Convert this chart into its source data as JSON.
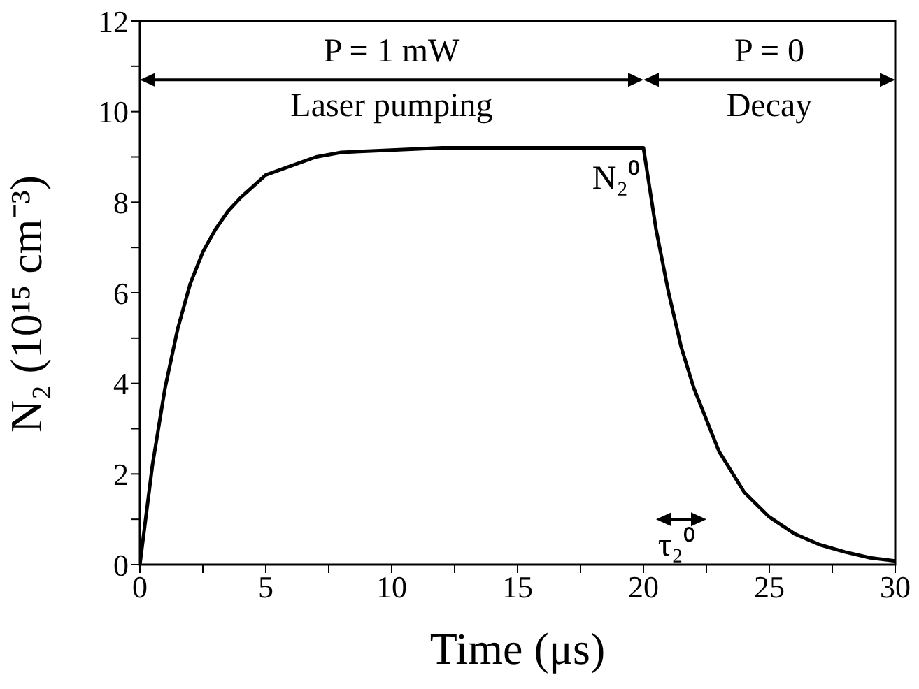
{
  "chart_data": {
    "type": "line",
    "xlabel": "Time (μs)",
    "ylabel": "N₂ (10¹⁵ cm⁻³)",
    "x": [
      0,
      0.5,
      1,
      1.5,
      2,
      2.5,
      3,
      3.5,
      4,
      5,
      6,
      7,
      8,
      10,
      12,
      15,
      20,
      20.5,
      21,
      21.5,
      22,
      23,
      24,
      25,
      26,
      27,
      28,
      29,
      30
    ],
    "series": [
      {
        "color": "#000000",
        "values": [
          0,
          2.2,
          3.9,
          5.2,
          6.2,
          6.9,
          7.4,
          7.8,
          8.1,
          8.6,
          8.8,
          9.0,
          9.1,
          9.15,
          9.2,
          9.2,
          9.2,
          7.4,
          6.0,
          4.8,
          3.9,
          2.5,
          1.6,
          1.05,
          0.68,
          0.44,
          0.28,
          0.15,
          0.08
        ]
      }
    ],
    "xlim": [
      0,
      30
    ],
    "xticks": [
      0,
      {
        "value": 2.5,
        "label": null
      },
      5,
      {
        "value": 7.5,
        "label": null
      },
      10,
      {
        "value": 12.5,
        "label": null
      },
      15,
      {
        "value": 17.5,
        "label": null
      },
      20,
      {
        "value": 22.5,
        "label": null
      },
      25,
      {
        "value": 27.5,
        "label": null
      },
      30
    ],
    "ylim": [
      0,
      12
    ],
    "yticks": [
      0,
      {
        "value": 1,
        "label": null
      },
      2,
      {
        "value": 3,
        "label": null
      },
      4,
      {
        "value": 5,
        "label": null
      },
      6,
      {
        "value": 7,
        "label": null
      },
      8,
      {
        "value": 9,
        "label": null
      },
      10,
      {
        "value": 11,
        "label": null
      },
      12
    ],
    "grid": false,
    "legend": false,
    "marker": "none",
    "line_style": "solid",
    "annotations": [
      "P = 1 mW",
      "Laser pumping",
      "P = 0",
      "Decay",
      "N₂⁰",
      "τ₂⁰"
    ]
  }
}
